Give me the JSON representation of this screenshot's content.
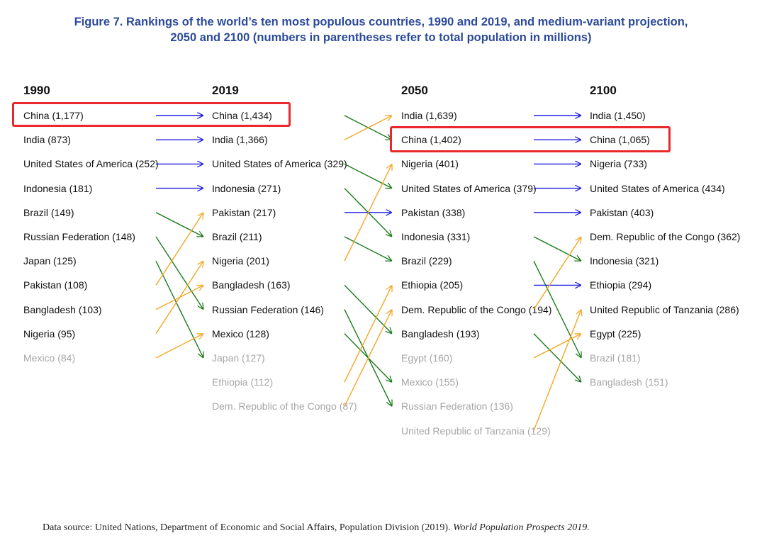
{
  "title_line1": "Figure 7. Rankings of the world’s ten most populous countries, 1990 and 2019, and medium-variant projection,",
  "title_line2": "2050 and 2100 (numbers in parentheses refer to total population in millions)",
  "columns": [
    {
      "year": "1990",
      "entries": [
        {
          "text": "China (1,177)",
          "top": true
        },
        {
          "text": "India (873)",
          "top": true
        },
        {
          "text": "United States of America (252)",
          "top": true
        },
        {
          "text": "Indonesia (181)",
          "top": true
        },
        {
          "text": "Brazil (149)",
          "top": true
        },
        {
          "text": "Russian Federation (148)",
          "top": true
        },
        {
          "text": "Japan (125)",
          "top": true
        },
        {
          "text": "Pakistan (108)",
          "top": true
        },
        {
          "text": "Bangladesh (103)",
          "top": true
        },
        {
          "text": "Nigeria (95)",
          "top": true
        },
        {
          "text": "Mexico (84)",
          "top": false
        }
      ]
    },
    {
      "year": "2019",
      "entries": [
        {
          "text": "China (1,434)",
          "top": true
        },
        {
          "text": "India (1,366)",
          "top": true
        },
        {
          "text": "United States of America (329)",
          "top": true
        },
        {
          "text": "Indonesia (271)",
          "top": true
        },
        {
          "text": "Pakistan (217)",
          "top": true
        },
        {
          "text": "Brazil (211)",
          "top": true
        },
        {
          "text": "Nigeria (201)",
          "top": true
        },
        {
          "text": "Bangladesh (163)",
          "top": true
        },
        {
          "text": "Russian Federation (146)",
          "top": true
        },
        {
          "text": "Mexico (128)",
          "top": true
        },
        {
          "text": "Japan (127)",
          "top": false
        },
        {
          "text": "Ethiopia (112)",
          "top": false
        },
        {
          "text": "Dem. Republic of the Congo (87)",
          "top": false
        }
      ]
    },
    {
      "year": "2050",
      "entries": [
        {
          "text": "India (1,639)",
          "top": true
        },
        {
          "text": "China (1,402)",
          "top": true
        },
        {
          "text": "Nigeria (401)",
          "top": true
        },
        {
          "text": "United States of America (379)",
          "top": true
        },
        {
          "text": "Pakistan (338)",
          "top": true
        },
        {
          "text": "Indonesia (331)",
          "top": true
        },
        {
          "text": "Brazil (229)",
          "top": true
        },
        {
          "text": "Ethiopia (205)",
          "top": true
        },
        {
          "text": "Dem. Republic of the Congo (194)",
          "top": true
        },
        {
          "text": "Bangladesh (193)",
          "top": true
        },
        {
          "text": "Egypt (160)",
          "top": false
        },
        {
          "text": "Mexico (155)",
          "top": false
        },
        {
          "text": "Russian Federation (136)",
          "top": false
        },
        {
          "text": "United Republic of Tanzania (129)",
          "top": false
        }
      ]
    },
    {
      "year": "2100",
      "entries": [
        {
          "text": "India (1,450)",
          "top": true
        },
        {
          "text": "China (1,065)",
          "top": true
        },
        {
          "text": "Nigeria (733)",
          "top": true
        },
        {
          "text": "United States of America (434)",
          "top": true
        },
        {
          "text": "Pakistan (403)",
          "top": true
        },
        {
          "text": "Dem. Republic of the Congo (362)",
          "top": true
        },
        {
          "text": "Indonesia (321)",
          "top": true
        },
        {
          "text": "Ethiopia (294)",
          "top": true
        },
        {
          "text": "United Republic of Tanzania (286)",
          "top": true
        },
        {
          "text": "Egypt (225)",
          "top": true
        },
        {
          "text": "Brazil (181)",
          "top": false
        },
        {
          "text": "Bangladesh (151)",
          "top": false
        }
      ]
    }
  ],
  "transitions": [
    [
      {
        "from": 0,
        "to": 0,
        "kind": "same"
      },
      {
        "from": 1,
        "to": 1,
        "kind": "same"
      },
      {
        "from": 2,
        "to": 2,
        "kind": "same"
      },
      {
        "from": 3,
        "to": 3,
        "kind": "same"
      },
      {
        "from": 4,
        "to": 5,
        "kind": "down"
      },
      {
        "from": 5,
        "to": 8,
        "kind": "down"
      },
      {
        "from": 6,
        "to": 10,
        "kind": "down"
      },
      {
        "from": 7,
        "to": 4,
        "kind": "up"
      },
      {
        "from": 8,
        "to": 7,
        "kind": "up"
      },
      {
        "from": 9,
        "to": 6,
        "kind": "up"
      },
      {
        "from": 10,
        "to": 9,
        "kind": "up"
      }
    ],
    [
      {
        "from": 0,
        "to": 1,
        "kind": "down"
      },
      {
        "from": 1,
        "to": 0,
        "kind": "up"
      },
      {
        "from": 2,
        "to": 3,
        "kind": "down"
      },
      {
        "from": 3,
        "to": 5,
        "kind": "down"
      },
      {
        "from": 4,
        "to": 4,
        "kind": "same"
      },
      {
        "from": 5,
        "to": 6,
        "kind": "down"
      },
      {
        "from": 6,
        "to": 2,
        "kind": "up"
      },
      {
        "from": 7,
        "to": 9,
        "kind": "down"
      },
      {
        "from": 8,
        "to": 12,
        "kind": "down"
      },
      {
        "from": 9,
        "to": 11,
        "kind": "down"
      },
      {
        "from": 11,
        "to": 7,
        "kind": "up"
      },
      {
        "from": 12,
        "to": 8,
        "kind": "up"
      }
    ],
    [
      {
        "from": 0,
        "to": 0,
        "kind": "same"
      },
      {
        "from": 1,
        "to": 1,
        "kind": "same"
      },
      {
        "from": 2,
        "to": 2,
        "kind": "same"
      },
      {
        "from": 3,
        "to": 3,
        "kind": "same"
      },
      {
        "from": 4,
        "to": 4,
        "kind": "same"
      },
      {
        "from": 5,
        "to": 6,
        "kind": "down"
      },
      {
        "from": 6,
        "to": 10,
        "kind": "down"
      },
      {
        "from": 7,
        "to": 7,
        "kind": "same"
      },
      {
        "from": 8,
        "to": 5,
        "kind": "up"
      },
      {
        "from": 9,
        "to": 11,
        "kind": "down"
      },
      {
        "from": 10,
        "to": 9,
        "kind": "up"
      },
      {
        "from": 13,
        "to": 8,
        "kind": "up"
      }
    ]
  ],
  "colors": {
    "same": "#1f1fe0",
    "down": "#1a7a1a",
    "up": "#f5a623",
    "highlight": "#e8282b",
    "title": "#2b4a9a"
  },
  "source_prefix": "Data source: United Nations, Department of Economic and Social Affairs, Population Division (2019). ",
  "source_italic": "World Population Prospects 2019."
}
